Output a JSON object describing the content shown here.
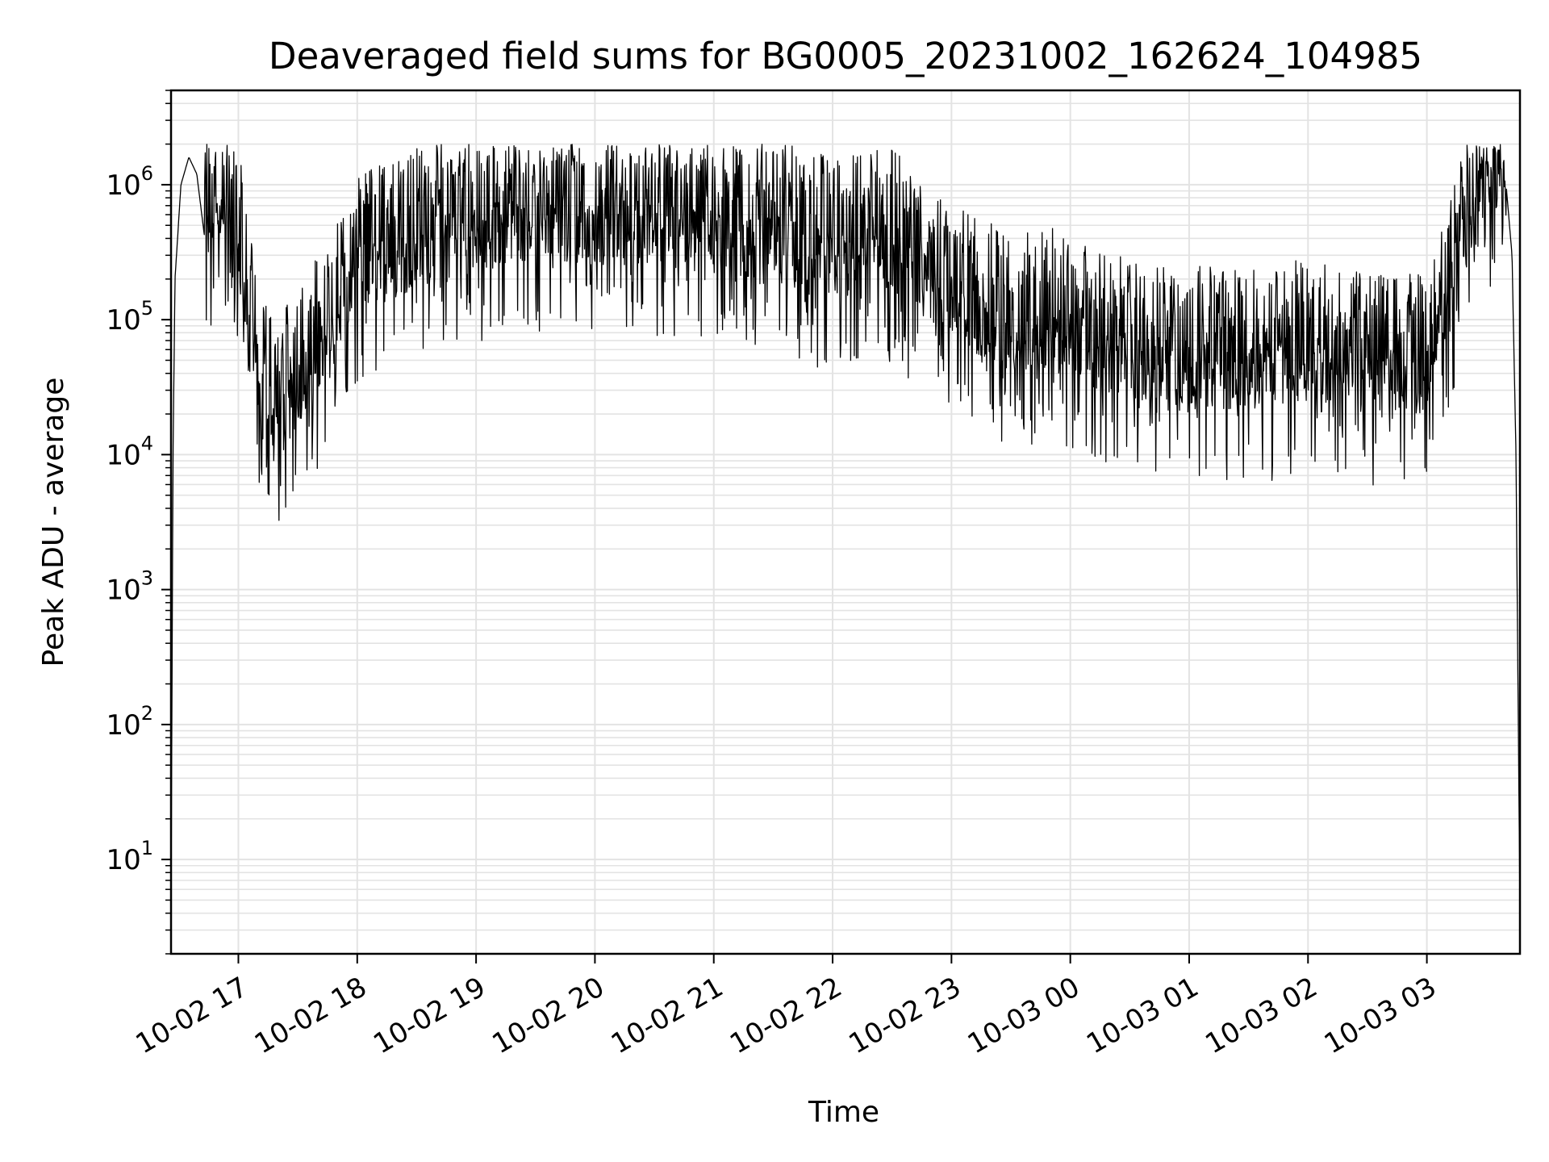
{
  "chart_data": {
    "type": "line",
    "title": "Deaveraged field sums for BG0005_20231002_162624_104985",
    "xlabel": "Time",
    "ylabel": "Peak ADU - average",
    "yscale": "log",
    "ylim": [
      2,
      5000000
    ],
    "xlim": [
      "2023-10-02 16:26",
      "2023-10-03 03:47"
    ],
    "grid": true,
    "line_color": "#000000",
    "x_ticks": [
      {
        "x": "2023-10-02 17:00",
        "label": "10-02 17"
      },
      {
        "x": "2023-10-02 18:00",
        "label": "10-02 18"
      },
      {
        "x": "2023-10-02 19:00",
        "label": "10-02 19"
      },
      {
        "x": "2023-10-02 20:00",
        "label": "10-02 20"
      },
      {
        "x": "2023-10-02 21:00",
        "label": "10-02 21"
      },
      {
        "x": "2023-10-02 22:00",
        "label": "10-02 22"
      },
      {
        "x": "2023-10-02 23:00",
        "label": "10-02 23"
      },
      {
        "x": "2023-10-03 00:00",
        "label": "10-03 00"
      },
      {
        "x": "2023-10-03 01:00",
        "label": "10-03 01"
      },
      {
        "x": "2023-10-03 02:00",
        "label": "10-03 02"
      },
      {
        "x": "2023-10-03 03:00",
        "label": "10-03 03"
      }
    ],
    "y_ticks": [
      {
        "value": 10,
        "base": "10",
        "exp": "1"
      },
      {
        "value": 100,
        "base": "10",
        "exp": "2"
      },
      {
        "value": 1000,
        "base": "10",
        "exp": "3"
      },
      {
        "value": 10000,
        "base": "10",
        "exp": "4"
      },
      {
        "value": 100000,
        "base": "10",
        "exp": "5"
      },
      {
        "value": 1000000,
        "base": "10",
        "exp": "6"
      }
    ],
    "series": [
      {
        "points": [
          [
            "2023-10-02 16:26",
            4
          ],
          [
            "2023-10-02 16:27",
            10000
          ],
          [
            "2023-10-02 16:28",
            200000
          ],
          [
            "2023-10-02 16:31",
            1000000
          ],
          [
            "2023-10-02 16:35",
            1600000
          ],
          [
            "2023-10-02 16:39",
            1200000
          ],
          [
            "2023-10-02 16:43",
            400000
          ],
          [
            "2023-10-02 16:50",
            600000
          ],
          [
            "2023-10-02 17:00",
            300000
          ],
          [
            "2023-10-02 17:10",
            40000
          ],
          [
            "2023-10-02 17:20",
            15000
          ],
          [
            "2023-10-02 17:30",
            30000
          ],
          [
            "2023-10-02 17:45",
            60000
          ],
          [
            "2023-10-02 18:00",
            200000
          ],
          [
            "2023-10-02 18:30",
            300000
          ],
          [
            "2023-10-02 19:00",
            400000
          ],
          [
            "2023-10-02 19:30",
            500000
          ],
          [
            "2023-10-02 20:00",
            450000
          ],
          [
            "2023-10-02 20:30",
            450000
          ],
          [
            "2023-10-02 21:00",
            400000
          ],
          [
            "2023-10-02 21:30",
            350000
          ],
          [
            "2023-10-02 22:00",
            250000
          ],
          [
            "2023-10-02 22:30",
            300000
          ],
          [
            "2023-10-02 23:00",
            120000
          ],
          [
            "2023-10-02 23:30",
            70000
          ],
          [
            "2023-10-02 23:50",
            80000
          ],
          [
            "2023-10-03 00:15",
            50000
          ],
          [
            "2023-10-03 00:30",
            45000
          ],
          [
            "2023-10-03 01:00",
            40000
          ],
          [
            "2023-10-03 01:30",
            38000
          ],
          [
            "2023-10-03 02:00",
            45000
          ],
          [
            "2023-10-03 02:30",
            35000
          ],
          [
            "2023-10-03 03:00",
            40000
          ],
          [
            "2023-10-03 03:15",
            200000
          ],
          [
            "2023-10-03 03:30",
            800000
          ],
          [
            "2023-10-03 03:36",
            1300000
          ],
          [
            "2023-10-03 03:40",
            1000000
          ],
          [
            "2023-10-03 03:43",
            300000
          ],
          [
            "2023-10-03 03:45",
            10000
          ],
          [
            "2023-10-03 03:47",
            4
          ]
        ]
      }
    ]
  }
}
